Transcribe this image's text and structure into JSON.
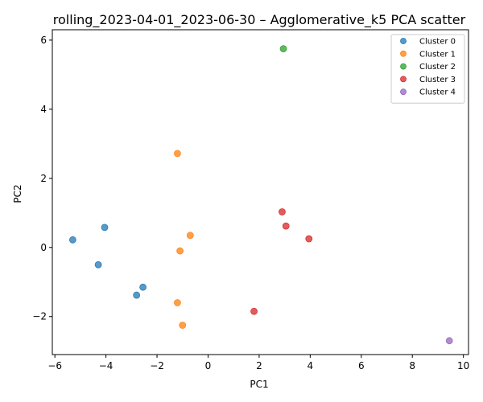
{
  "chart_data": {
    "type": "scatter",
    "title": "rolling_2023-04-01_2023-06-30 – Agglomerative_k5 PCA scatter",
    "xlabel": "PC1",
    "ylabel": "PC2",
    "xlim": [
      -6.1,
      10.2
    ],
    "ylim": [
      -3.1,
      6.3
    ],
    "xticks": [
      -6,
      -4,
      -2,
      0,
      2,
      4,
      6,
      8,
      10
    ],
    "yticks": [
      -2,
      0,
      2,
      4,
      6
    ],
    "grid": false,
    "legend_position": "top-right",
    "series": [
      {
        "name": "Cluster 0",
        "color": "#1f77b4",
        "points": [
          [
            -5.3,
            0.22
          ],
          [
            -4.05,
            0.58
          ],
          [
            -4.3,
            -0.5
          ],
          [
            -2.55,
            -1.15
          ],
          [
            -2.8,
            -1.38
          ]
        ]
      },
      {
        "name": "Cluster 1",
        "color": "#ff7f0e",
        "points": [
          [
            -1.2,
            2.72
          ],
          [
            -0.7,
            0.35
          ],
          [
            -1.1,
            -0.1
          ],
          [
            -1.2,
            -1.6
          ],
          [
            -1.0,
            -2.25
          ]
        ]
      },
      {
        "name": "Cluster 2",
        "color": "#2ca02c",
        "points": [
          [
            2.95,
            5.75
          ]
        ]
      },
      {
        "name": "Cluster 3",
        "color": "#d62728",
        "points": [
          [
            2.9,
            1.03
          ],
          [
            3.05,
            0.62
          ],
          [
            3.95,
            0.25
          ],
          [
            1.8,
            -1.85
          ]
        ]
      },
      {
        "name": "Cluster 4",
        "color": "#9467bd",
        "points": [
          [
            9.45,
            -2.7
          ]
        ]
      }
    ]
  }
}
